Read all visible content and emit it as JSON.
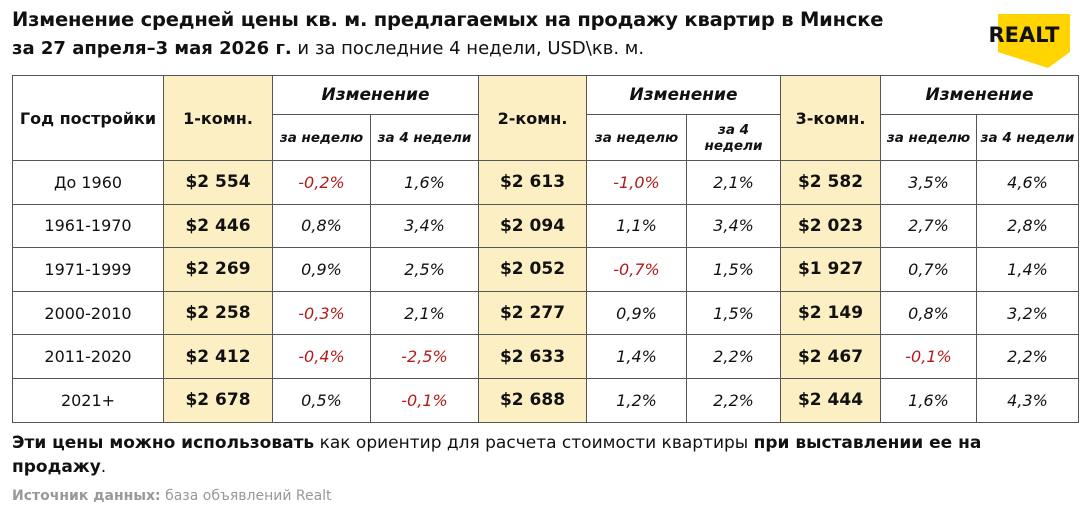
{
  "header": {
    "title": "Изменение средней цены кв. м. предлагаемых на продажу квартир в Минске",
    "subtitle_bold": "за 27 апреля–3 мая 2026 г.",
    "subtitle": "и за последние 4 недели, USD\\кв. м."
  },
  "logo": "REALT",
  "table": {
    "header": [
      "Год постройки",
      "1-комн.",
      "Изменение",
      "2-комн.",
      "Изменение",
      "3-комн.",
      "Изменение"
    ],
    "subheader": [
      "за неделю",
      "за 4 недели",
      "за неделю",
      "за 4 недели",
      "за неделю",
      "за 4 недели"
    ],
    "rows": [
      [
        "До 1960",
        "$2 554",
        "-0,2%",
        "1,6%",
        "$2 613",
        "-1,0%",
        "2,1%",
        "$2 582",
        "3,5%",
        "4,6%"
      ],
      [
        "1961-1970",
        "$2 446",
        "0,8%",
        "3,4%",
        "$2 094",
        "1,1%",
        "3,4%",
        "$2 023",
        "2,7%",
        "2,8%"
      ],
      [
        "1971-1999",
        "$2 269",
        "0,9%",
        "2,5%",
        "$2 052",
        "-0,7%",
        "1,5%",
        "$1 927",
        "0,7%",
        "1,4%"
      ],
      [
        "2000-2010",
        "$2 258",
        "-0,3%",
        "2,1%",
        "$2 277",
        "0,9%",
        "1,5%",
        "$2 149",
        "0,8%",
        "3,2%"
      ],
      [
        "2011-2020",
        "$2 412",
        "-0,4%",
        "-2,5%",
        "$2 633",
        "1,4%",
        "2,2%",
        "$2 467",
        "-0,1%",
        "2,2%"
      ],
      [
        "2021+",
        "$2 678",
        "0,5%",
        "-0,1%",
        "$2 688",
        "1,2%",
        "2,2%",
        "$2 444",
        "1,6%",
        "4,3%"
      ]
    ]
  },
  "footer": {
    "note_bold_1": "Эти цены можно использовать",
    "note_1": "как ориентир для расчета стоимости квартиры",
    "note_bold_2": "при выставлении ее на продажу",
    "note_end": ".",
    "source_label": "Источник данных:",
    "source": "база объявлений Realt"
  }
}
